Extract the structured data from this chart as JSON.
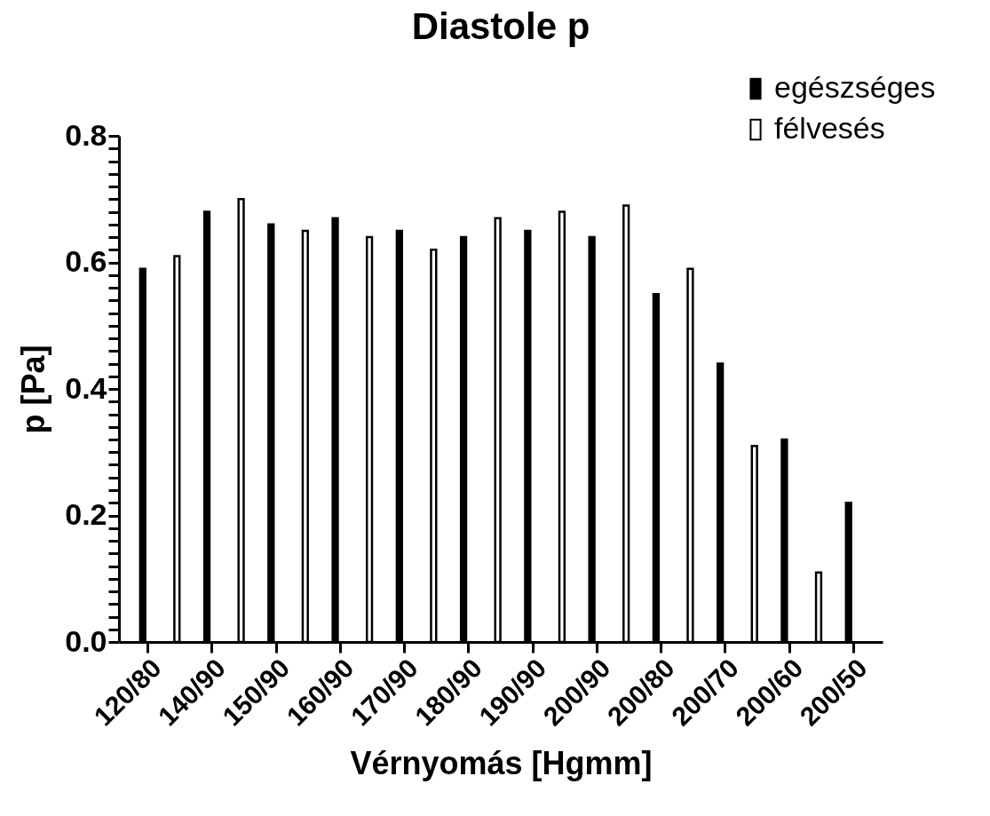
{
  "chart_data": {
    "type": "bar",
    "title": "Diastole p",
    "xlabel": "Vérnyomás [Hgmm]",
    "ylabel": "p [Pa]",
    "categories": [
      "120/80",
      "140/90",
      "150/90",
      "160/90",
      "170/90",
      "180/90",
      "190/90",
      "200/90",
      "200/80",
      "200/70",
      "200/60",
      "200/50"
    ],
    "series": [
      {
        "name": "egészséges",
        "color": "#000000",
        "values": [
          0.59,
          0.68,
          0.66,
          0.67,
          0.65,
          0.64,
          0.65,
          0.64,
          0.55,
          0.44,
          0.32,
          0.22
        ]
      },
      {
        "name": "félvesés",
        "color": "#ffffff",
        "values": [
          0.61,
          0.7,
          0.65,
          0.64,
          0.62,
          0.67,
          0.68,
          0.69,
          0.59,
          0.31,
          0.11,
          null
        ]
      }
    ],
    "ylim": [
      0,
      0.8
    ],
    "yticks": [
      {
        "value": 0,
        "label": "0.0"
      },
      {
        "value": 0.02,
        "label": null
      },
      {
        "value": 0.04,
        "label": null
      },
      {
        "value": 0.06,
        "label": null
      },
      {
        "value": 0.08,
        "label": null
      },
      {
        "value": 0.1,
        "label": null
      },
      {
        "value": 0.12,
        "label": null
      },
      {
        "value": 0.14,
        "label": null
      },
      {
        "value": 0.16,
        "label": null
      },
      {
        "value": 0.18,
        "label": null
      },
      0.2,
      {
        "value": 0.22,
        "label": null
      },
      {
        "value": 0.24,
        "label": null
      },
      {
        "value": 0.26,
        "label": null
      },
      {
        "value": 0.28,
        "label": null
      },
      {
        "value": 0.3,
        "label": null
      },
      {
        "value": 0.32,
        "label": null
      },
      {
        "value": 0.34,
        "label": null
      },
      {
        "value": 0.36,
        "label": null
      },
      {
        "value": 0.38,
        "label": null
      },
      0.4,
      {
        "value": 0.42,
        "label": null
      },
      {
        "value": 0.44,
        "label": null
      },
      {
        "value": 0.46,
        "label": null
      },
      {
        "value": 0.48,
        "label": null
      },
      {
        "value": 0.5,
        "label": null
      },
      {
        "value": 0.52,
        "label": null
      },
      {
        "value": 0.54,
        "label": null
      },
      {
        "value": 0.56,
        "label": null
      },
      {
        "value": 0.58,
        "label": null
      },
      0.6,
      {
        "value": 0.62,
        "label": null
      },
      {
        "value": 0.64,
        "label": null
      },
      {
        "value": 0.66,
        "label": null
      },
      {
        "value": 0.68,
        "label": null
      },
      {
        "value": 0.7,
        "label": null
      },
      {
        "value": 0.72,
        "label": null
      },
      {
        "value": 0.74,
        "label": null
      },
      {
        "value": 0.76,
        "label": null
      },
      {
        "value": 0.78,
        "label": null
      },
      0.8
    ],
    "grid": false,
    "legend": "top right"
  }
}
